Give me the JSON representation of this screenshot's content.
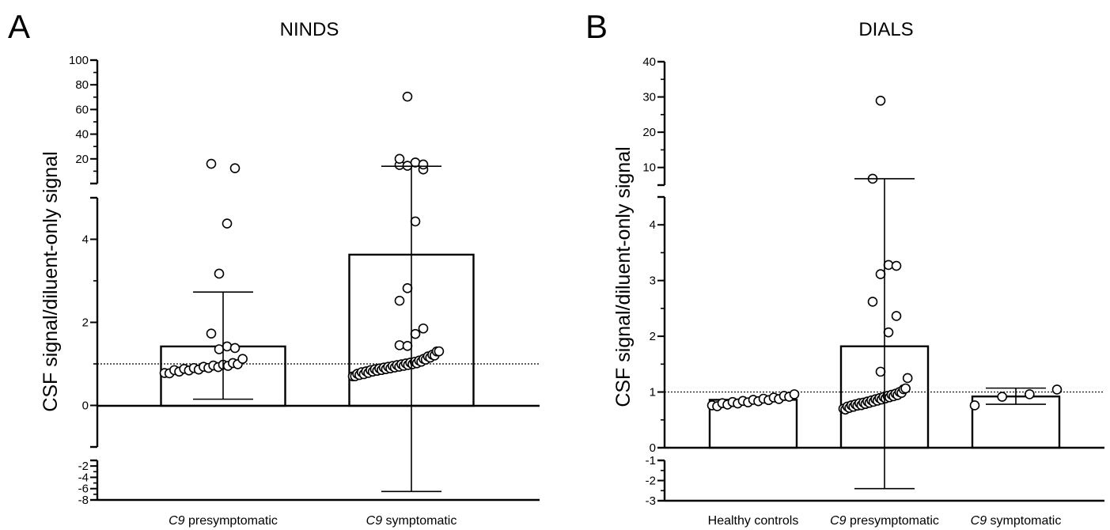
{
  "chart_data": [
    {
      "type": "bar",
      "panel_label": "A",
      "title": "NINDS",
      "ylabel": "CSF signal/diluent-only signal",
      "categories": [
        {
          "italic": "C9",
          "rest": " presymptomatic"
        },
        {
          "italic": "C9",
          "rest": " symptomatic"
        }
      ],
      "bar_values": [
        1.42,
        3.63
      ],
      "error_upper": [
        2.73,
        14
      ],
      "error_lower": [
        0.15,
        -6.5
      ],
      "reference_line": 1,
      "axis_segments": {
        "upper": {
          "range": [
            0,
            100
          ],
          "ticks": [
            20,
            40,
            60,
            80,
            100
          ],
          "labels": [
            "20",
            "40",
            "60",
            "80",
            "100"
          ],
          "minor_step": 10
        },
        "middle": {
          "range": [
            -1,
            5
          ],
          "ticks": [
            0,
            2,
            4
          ],
          "labels": [
            "0",
            "2",
            "4"
          ],
          "minor_step": 1
        },
        "lower": {
          "range": [
            -8,
            -1
          ],
          "ticks": [
            -2,
            -4,
            -6,
            -8
          ],
          "labels": [
            "-2",
            "-4",
            "-6",
            "-8"
          ],
          "minor_step": 1
        }
      },
      "points": [
        [
          0.78,
          0.82,
          0.85,
          0.86,
          0.88,
          0.89,
          0.9,
          0.91,
          0.93,
          0.95,
          0.96,
          0.97,
          0.98,
          1.0,
          1.02,
          1.04,
          1.12,
          1.4,
          1.42,
          1.43,
          1.73,
          3.22,
          4.38,
          14,
          16
        ],
        [
          0.7,
          0.75,
          0.76,
          0.78,
          0.8,
          0.8,
          0.82,
          0.83,
          0.85,
          0.86,
          0.87,
          0.88,
          0.89,
          0.9,
          0.91,
          0.92,
          0.93,
          0.94,
          0.95,
          0.96,
          0.97,
          0.98,
          0.99,
          1.0,
          1.01,
          1.02,
          1.03,
          1.04,
          1.05,
          1.06,
          1.08,
          1.1,
          1.12,
          1.15,
          1.18,
          1.2,
          1.22,
          1.25,
          1.3,
          1.35,
          1.45,
          1.48,
          1.72,
          1.9,
          2.52,
          2.87,
          4.43,
          13,
          15,
          16,
          17,
          17,
          20,
          72
        ]
      ]
    },
    {
      "type": "bar",
      "panel_label": "B",
      "title": "DIALS",
      "ylabel": "CSF signal/diluent-only signal",
      "categories": [
        {
          "italic": "",
          "rest": "Healthy controls"
        },
        {
          "italic": "C9",
          "rest": " presymptomatic"
        },
        {
          "italic": "C9",
          "rest": " symptomatic"
        }
      ],
      "bar_values": [
        0.86,
        1.82,
        0.92
      ],
      "error_upper": [
        null,
        6.8,
        1.07
      ],
      "error_lower": [
        null,
        -2.4,
        0.78
      ],
      "reference_line": 1,
      "axis_segments": {
        "upper": {
          "range": [
            5,
            40
          ],
          "ticks": [
            10,
            20,
            30,
            40
          ],
          "labels": [
            "10",
            "20",
            "30",
            "40"
          ],
          "minor_step": 5
        },
        "middle": {
          "range": [
            0,
            4.5
          ],
          "ticks": [
            0,
            1,
            2,
            3,
            4
          ],
          "labels": [
            "0",
            "1",
            "2",
            "3",
            "4"
          ],
          "minor_step": 0.5
        },
        "lower": {
          "range": [
            -3,
            -1
          ],
          "ticks": [
            -1,
            -2,
            -3
          ],
          "labels": [
            "-1",
            "-2",
            "-3"
          ],
          "minor_step": 0.5
        }
      },
      "points": [
        [
          0.76,
          0.78,
          0.8,
          0.81,
          0.82,
          0.83,
          0.84,
          0.85,
          0.86,
          0.87,
          0.88,
          0.89,
          0.9,
          0.91,
          0.93,
          0.95,
          0.96
        ],
        [
          0.7,
          0.72,
          0.74,
          0.75,
          0.76,
          0.77,
          0.78,
          0.79,
          0.8,
          0.8,
          0.81,
          0.82,
          0.83,
          0.84,
          0.85,
          0.86,
          0.87,
          0.88,
          0.89,
          0.9,
          0.91,
          0.92,
          0.93,
          0.94,
          0.95,
          0.96,
          0.97,
          0.98,
          1.0,
          1.02,
          1.05,
          1.1,
          1.25,
          1.4,
          2.07,
          2.4,
          2.62,
          3.15,
          3.28,
          3.3,
          6.8,
          29.5
        ],
        [
          0.76,
          0.95,
          0.96,
          1.08
        ]
      ]
    }
  ]
}
